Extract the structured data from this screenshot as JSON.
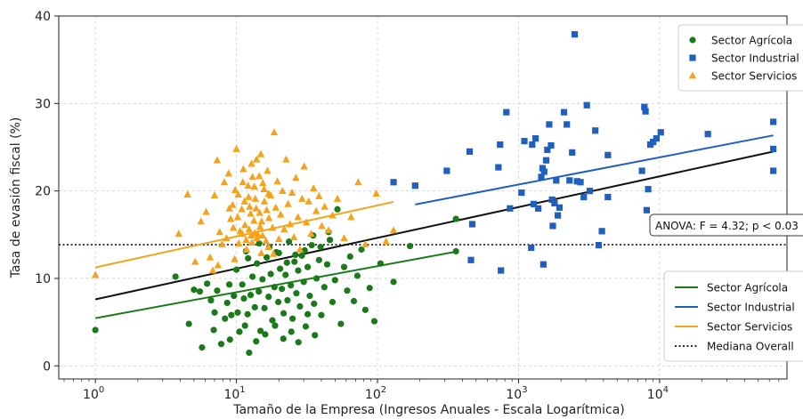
{
  "chart_data": {
    "type": "scatter",
    "title": "",
    "xlabel": "Tamaño de la Empresa (Ingresos Anuales - Escala Logarítmica)",
    "ylabel": "Tasa de evasión fiscal (%)",
    "x_scale": "log",
    "xlim": [
      0.55,
      80000
    ],
    "ylim": [
      -1.5,
      40
    ],
    "grid": true,
    "x_ticks": [
      {
        "value": 1,
        "base": "10",
        "exp": "0"
      },
      {
        "value": 10,
        "base": "10",
        "exp": "1"
      },
      {
        "value": 100,
        "base": "10",
        "exp": "2"
      },
      {
        "value": 1000,
        "base": "10",
        "exp": "3"
      },
      {
        "value": 10000,
        "base": "10",
        "exp": "4"
      }
    ],
    "y_ticks": [
      0,
      10,
      20,
      30,
      40
    ],
    "colors": {
      "agricola": "#1a7a1a",
      "industrial": "#1f5fbf",
      "servicios": "#f5a31a",
      "overall": "#111111"
    },
    "series": [
      {
        "name": "Sector Agrícola",
        "marker": "circle",
        "color": "#1a7a1a",
        "points": [
          [
            1.0,
            4.1
          ],
          [
            3.7,
            10.2
          ],
          [
            4.6,
            4.8
          ],
          [
            5.5,
            8.5
          ],
          [
            5.7,
            2.1
          ],
          [
            6.2,
            9.4
          ],
          [
            6.6,
            7.5
          ],
          [
            6.9,
            4.1
          ],
          [
            7.3,
            8.6
          ],
          [
            7.8,
            2.5
          ],
          [
            8.3,
            5.4
          ],
          [
            8.6,
            7.2
          ],
          [
            8.9,
            9.3
          ],
          [
            9.2,
            5.8
          ],
          [
            9.6,
            8.0
          ],
          [
            10.0,
            11.0
          ],
          [
            10.2,
            6.1
          ],
          [
            10.5,
            3.9
          ],
          [
            11.0,
            9.3
          ],
          [
            11.3,
            7.7
          ],
          [
            11.7,
            13.1
          ],
          [
            12.0,
            5.9
          ],
          [
            12.3,
            1.5
          ],
          [
            12.6,
            8.1
          ],
          [
            13.0,
            10.2
          ],
          [
            13.5,
            6.7
          ],
          [
            14.0,
            11.7
          ],
          [
            14.4,
            8.5
          ],
          [
            14.8,
            4.0
          ],
          [
            15.3,
            9.9
          ],
          [
            15.8,
            6.6
          ],
          [
            16.4,
            12.4
          ],
          [
            16.9,
            7.9
          ],
          [
            17.5,
            10.5
          ],
          [
            18.0,
            5.2
          ],
          [
            18.6,
            9.0
          ],
          [
            19.2,
            13.0
          ],
          [
            19.8,
            7.3
          ],
          [
            20.4,
            11.1
          ],
          [
            21.0,
            8.8
          ],
          [
            21.6,
            6.0
          ],
          [
            22.3,
            10.4
          ],
          [
            23.0,
            7.5
          ],
          [
            23.6,
            14.2
          ],
          [
            24.3,
            9.2
          ],
          [
            25.0,
            5.4
          ],
          [
            25.8,
            11.9
          ],
          [
            26.6,
            8.3
          ],
          [
            27.4,
            10.9
          ],
          [
            28.2,
            6.8
          ],
          [
            29.1,
            12.6
          ],
          [
            30.0,
            9.6
          ],
          [
            31.0,
            4.5
          ],
          [
            32.0,
            11.3
          ],
          [
            33.1,
            8.0
          ],
          [
            34.2,
            13.8
          ],
          [
            35.5,
            7.1
          ],
          [
            37.0,
            10.0
          ],
          [
            38.5,
            12.1
          ],
          [
            40.0,
            5.8
          ],
          [
            42.0,
            9.0
          ],
          [
            44.0,
            11.6
          ],
          [
            46.0,
            14.4
          ],
          [
            48.0,
            7.3
          ],
          [
            50.0,
            9.8
          ],
          [
            52.0,
            17.9
          ],
          [
            55.0,
            4.8
          ],
          [
            58.0,
            11.3
          ],
          [
            61.0,
            8.6
          ],
          [
            64.0,
            12.5
          ],
          [
            68.0,
            7.4
          ],
          [
            72.0,
            10.3
          ],
          [
            77.0,
            13.3
          ],
          [
            82.0,
            6.4
          ],
          [
            88.0,
            8.9
          ],
          [
            95.0,
            5.1
          ],
          [
            105.0,
            11.7
          ],
          [
            130.0,
            9.6
          ],
          [
            170.0,
            13.7
          ],
          [
            360.0,
            16.8
          ],
          [
            360.0,
            13.1
          ],
          [
            5.0,
            8.7
          ],
          [
            7.0,
            6.1
          ],
          [
            9.0,
            3.0
          ],
          [
            11.5,
            4.6
          ],
          [
            13.8,
            2.8
          ],
          [
            16.0,
            3.6
          ],
          [
            18.8,
            4.6
          ],
          [
            21.5,
            3.1
          ],
          [
            24.5,
            3.9
          ],
          [
            27.5,
            2.7
          ],
          [
            32.0,
            5.9
          ],
          [
            36.0,
            3.5
          ],
          [
            12.1,
            12.3
          ],
          [
            14.5,
            14.0
          ],
          [
            17.1,
            13.6
          ],
          [
            20.0,
            12.9
          ],
          [
            22.8,
            11.8
          ],
          [
            26.2,
            12.7
          ],
          [
            30.5,
            13.2
          ],
          [
            35.0,
            14.9
          ],
          [
            39.5,
            13.6
          ],
          [
            45.0,
            15.3
          ]
        ]
      },
      {
        "name": "Sector Industrial",
        "marker": "square",
        "color": "#1f5fbf",
        "points": [
          [
            130,
            21.0
          ],
          [
            185,
            20.6
          ],
          [
            310,
            22.3
          ],
          [
            450,
            24.5
          ],
          [
            470,
            16.2
          ],
          [
            460,
            12.1
          ],
          [
            720,
            22.7
          ],
          [
            740,
            25.3
          ],
          [
            750,
            10.9
          ],
          [
            820,
            29.0
          ],
          [
            870,
            18.0
          ],
          [
            1050,
            19.8
          ],
          [
            1100,
            25.7
          ],
          [
            1230,
            13.5
          ],
          [
            1250,
            25.3
          ],
          [
            1280,
            18.5
          ],
          [
            1320,
            26.0
          ],
          [
            1380,
            18.0
          ],
          [
            1450,
            21.6
          ],
          [
            1480,
            22.6
          ],
          [
            1500,
            11.6
          ],
          [
            1520,
            22.2
          ],
          [
            1570,
            23.5
          ],
          [
            1600,
            24.7
          ],
          [
            1650,
            27.6
          ],
          [
            1700,
            25.2
          ],
          [
            1730,
            19.0
          ],
          [
            1750,
            16.0
          ],
          [
            1800,
            18.6
          ],
          [
            1850,
            21.2
          ],
          [
            1900,
            17.2
          ],
          [
            1950,
            18.1
          ],
          [
            2100,
            29.0
          ],
          [
            2200,
            27.6
          ],
          [
            2300,
            21.2
          ],
          [
            2400,
            24.4
          ],
          [
            2500,
            37.9
          ],
          [
            2600,
            21.1
          ],
          [
            2750,
            21.0
          ],
          [
            2900,
            19.3
          ],
          [
            3050,
            29.8
          ],
          [
            3200,
            20.0
          ],
          [
            3500,
            26.9
          ],
          [
            3700,
            13.8
          ],
          [
            3900,
            15.4
          ],
          [
            4300,
            19.3
          ],
          [
            4300,
            24.1
          ],
          [
            7500,
            22.3
          ],
          [
            7800,
            29.6
          ],
          [
            7950,
            29.1
          ],
          [
            8100,
            17.8
          ],
          [
            8300,
            20.2
          ],
          [
            8600,
            25.3
          ],
          [
            9000,
            25.6
          ],
          [
            9500,
            26.0
          ],
          [
            10200,
            26.7
          ],
          [
            22000,
            26.5
          ],
          [
            64000,
            27.9
          ],
          [
            64000,
            24.8
          ],
          [
            64000,
            22.3
          ]
        ]
      },
      {
        "name": "Sector Servicios",
        "marker": "triangle",
        "color": "#f5a31a",
        "points": [
          [
            1.0,
            10.4
          ],
          [
            3.9,
            15.1
          ],
          [
            4.5,
            19.6
          ],
          [
            5.1,
            11.9
          ],
          [
            5.6,
            16.5
          ],
          [
            6.1,
            17.6
          ],
          [
            6.5,
            12.4
          ],
          [
            7.0,
            19.5
          ],
          [
            7.3,
            23.5
          ],
          [
            7.6,
            15.3
          ],
          [
            7.9,
            13.9
          ],
          [
            8.2,
            21.0
          ],
          [
            8.5,
            14.6
          ],
          [
            8.8,
            22.0
          ],
          [
            9.1,
            16.8
          ],
          [
            9.4,
            18.4
          ],
          [
            9.7,
            12.2
          ],
          [
            10.0,
            24.8
          ],
          [
            10.3,
            19.6
          ],
          [
            10.6,
            15.4
          ],
          [
            10.9,
            17.9
          ],
          [
            11.2,
            22.5
          ],
          [
            11.5,
            16.1
          ],
          [
            11.8,
            13.3
          ],
          [
            12.1,
            20.6
          ],
          [
            12.4,
            18.2
          ],
          [
            12.7,
            14.9
          ],
          [
            13.0,
            21.6
          ],
          [
            13.3,
            16.6
          ],
          [
            13.6,
            19.1
          ],
          [
            13.9,
            23.6
          ],
          [
            14.2,
            15.0
          ],
          [
            14.6,
            17.5
          ],
          [
            15.0,
            12.9
          ],
          [
            15.4,
            20.9
          ],
          [
            15.8,
            18.8
          ],
          [
            16.2,
            14.3
          ],
          [
            16.6,
            22.3
          ],
          [
            17.0,
            16.9
          ],
          [
            17.5,
            19.5
          ],
          [
            18.0,
            15.8
          ],
          [
            18.5,
            26.7
          ],
          [
            19.0,
            18.1
          ],
          [
            19.5,
            21.1
          ],
          [
            20.0,
            14.5
          ],
          [
            20.6,
            17.3
          ],
          [
            21.2,
            20.0
          ],
          [
            21.8,
            15.6
          ],
          [
            22.5,
            23.6
          ],
          [
            23.2,
            18.5
          ],
          [
            24.0,
            16.2
          ],
          [
            24.8,
            19.8
          ],
          [
            25.6,
            14.7
          ],
          [
            26.4,
            21.5
          ],
          [
            27.3,
            17.0
          ],
          [
            28.2,
            13.3
          ],
          [
            29.2,
            19.1
          ],
          [
            30.2,
            22.8
          ],
          [
            31.3,
            16.4
          ],
          [
            32.5,
            18.8
          ],
          [
            33.8,
            15.1
          ],
          [
            35.2,
            20.3
          ],
          [
            36.8,
            17.7
          ],
          [
            38.5,
            19.4
          ],
          [
            40.3,
            16.0
          ],
          [
            42.2,
            18.2
          ],
          [
            45.0,
            15.5
          ],
          [
            48.0,
            17.2
          ],
          [
            52.0,
            19.1
          ],
          [
            58.0,
            14.6
          ],
          [
            65.0,
            17.0
          ],
          [
            73.0,
            21.0
          ],
          [
            82.0,
            13.9
          ],
          [
            98.0,
            19.7
          ],
          [
            115.0,
            14.2
          ],
          [
            130.0,
            15.5
          ],
          [
            9.5,
            15.8
          ],
          [
            10.4,
            14.0
          ],
          [
            11.0,
            15.1
          ],
          [
            11.7,
            14.4
          ],
          [
            12.3,
            15.6
          ],
          [
            12.9,
            14.1
          ],
          [
            13.5,
            15.2
          ],
          [
            14.0,
            14.6
          ],
          [
            14.7,
            15.9
          ],
          [
            15.3,
            14.9
          ],
          [
            10.2,
            17.0
          ],
          [
            11.4,
            18.8
          ],
          [
            12.6,
            17.4
          ],
          [
            13.8,
            18.0
          ],
          [
            15.1,
            16.5
          ],
          [
            16.4,
            17.8
          ],
          [
            9.8,
            20.1
          ],
          [
            11.1,
            21.0
          ],
          [
            12.2,
            19.3
          ],
          [
            13.4,
            20.5
          ],
          [
            14.5,
            21.7
          ],
          [
            15.7,
            20.2
          ],
          [
            16.9,
            19.7
          ],
          [
            8.9,
            18.0
          ],
          [
            12.8,
            23.1
          ],
          [
            14.9,
            24.2
          ],
          [
            6.8,
            10.9
          ],
          [
            7.4,
            11.5
          ],
          [
            16.9,
            13.6
          ],
          [
            18.3,
            12.8
          ]
        ]
      }
    ],
    "trend_lines": [
      {
        "name": "Sector Agrícola",
        "color": "#1a7a1a",
        "from": [
          1,
          5.45
        ],
        "to": [
          360,
          13.05
        ]
      },
      {
        "name": "Sector Industrial",
        "color": "#1f5fbf",
        "from": [
          185,
          18.45
        ],
        "to": [
          64000,
          26.35
        ]
      },
      {
        "name": "Sector Servicios",
        "color": "#f5a31a",
        "from": [
          1,
          11.25
        ],
        "to": [
          130,
          18.75
        ]
      },
      {
        "name": "",
        "color": "#111111",
        "from": [
          1,
          7.6
        ],
        "to": [
          64000,
          24.5
        ]
      }
    ],
    "median_line": {
      "name": "Mediana Overall",
      "y": 13.85,
      "color": "#111111",
      "style": "dotted"
    },
    "annotation": {
      "text": "ANOVA: F = 4.32; p < 0.03"
    },
    "legends": {
      "markers": {
        "placement": "top-right",
        "items": [
          {
            "label": "Sector Agrícola",
            "marker": "circle",
            "color": "#1a7a1a"
          },
          {
            "label": "Sector Industrial",
            "marker": "square",
            "color": "#1f5fbf"
          },
          {
            "label": "Sector Servicios",
            "marker": "triangle",
            "color": "#f5a31a"
          }
        ]
      },
      "lines": {
        "placement": "bottom-right",
        "items": [
          {
            "label": "Sector Agrícola",
            "style": "solid",
            "color": "#1a7a1a"
          },
          {
            "label": "Sector Industrial",
            "style": "solid",
            "color": "#1f5fbf"
          },
          {
            "label": "Sector Servicios",
            "style": "solid",
            "color": "#f5a31a"
          },
          {
            "label": "Mediana Overall",
            "style": "dotted",
            "color": "#111111"
          }
        ]
      }
    }
  }
}
